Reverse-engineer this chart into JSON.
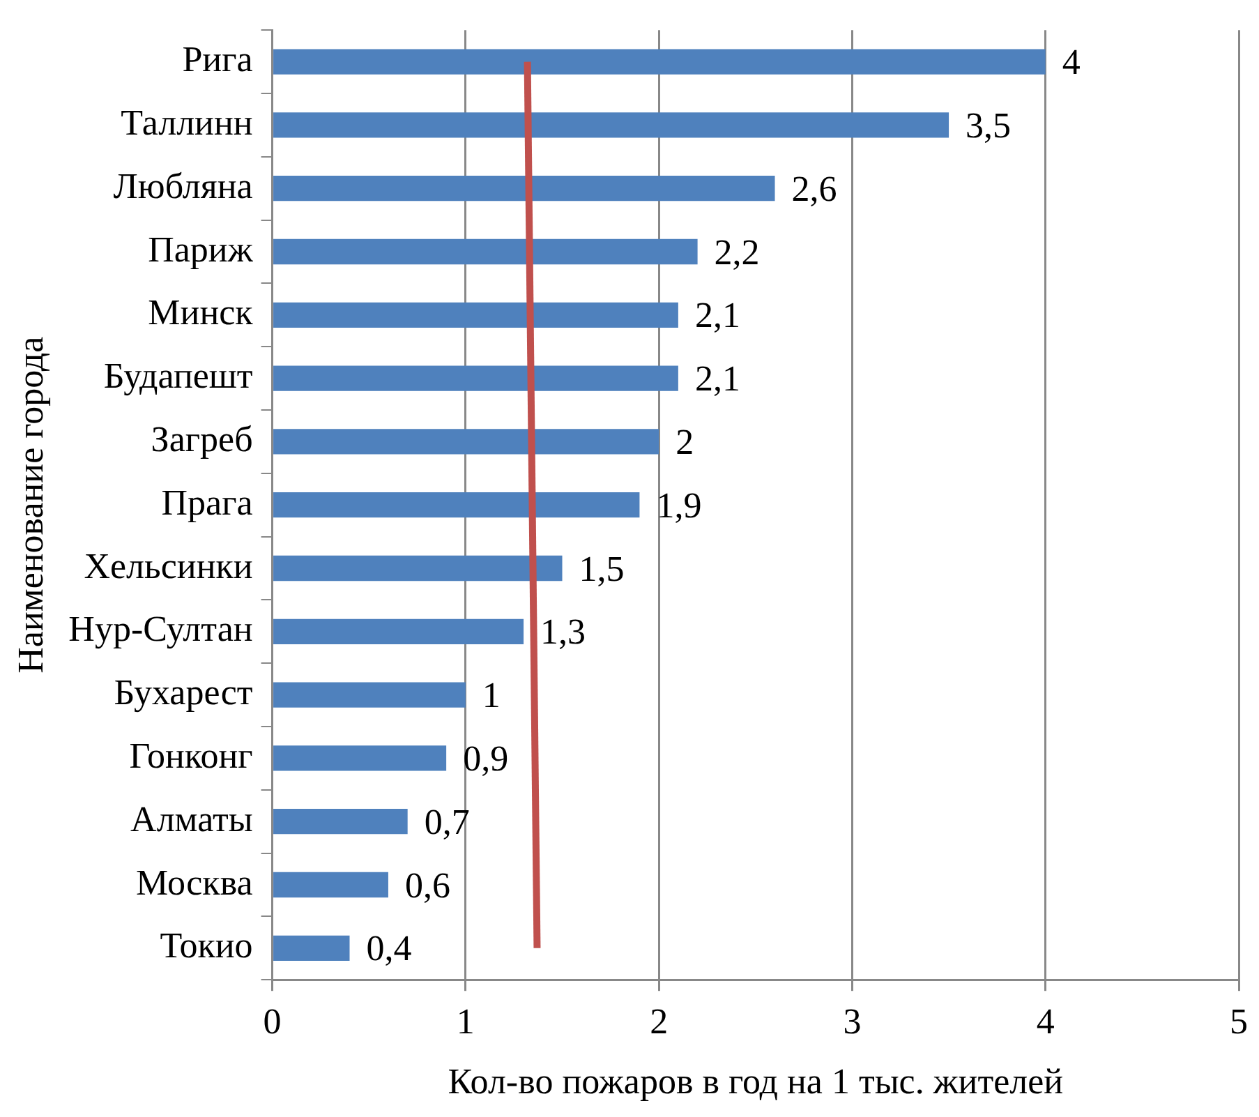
{
  "chart_data": {
    "type": "bar",
    "orientation": "horizontal",
    "xlabel": "Кол-во пожаров в год на 1 тыс. жителей",
    "ylabel": "Наименование города",
    "categories": [
      "Рига",
      "Таллинн",
      "Любляна",
      "Париж",
      "Минск",
      "Будапешт",
      "Загреб",
      "Прага",
      "Хельсинки",
      "Нур-Султан",
      "Бухарест",
      "Гонконг",
      "Алматы",
      "Москва",
      "Токио"
    ],
    "series": [
      {
        "color": "#4f81bd",
        "values": [
          4,
          3.5,
          2.6,
          2.2,
          2.1,
          2.1,
          2,
          1.9,
          1.5,
          1.3,
          1,
          0.9,
          0.7,
          0.6,
          0.4
        ],
        "value_labels": [
          "4",
          "3,5",
          "2,6",
          "2,2",
          "2,1",
          "2,1",
          "2",
          "1,9",
          "1,5",
          "1,3",
          "1",
          "0,9",
          "0,7",
          "0,6",
          "0,4"
        ]
      },
      {
        "type": "line",
        "color": "#c0504d",
        "marker": "none",
        "values": [
          1.32,
          null,
          null,
          null,
          null,
          null,
          null,
          null,
          null,
          null,
          null,
          null,
          null,
          null,
          1.37
        ]
      }
    ],
    "xlim": [
      0,
      5
    ],
    "xticks": [
      0,
      1,
      2,
      3,
      4,
      5
    ],
    "grid": "x",
    "legend": false
  }
}
